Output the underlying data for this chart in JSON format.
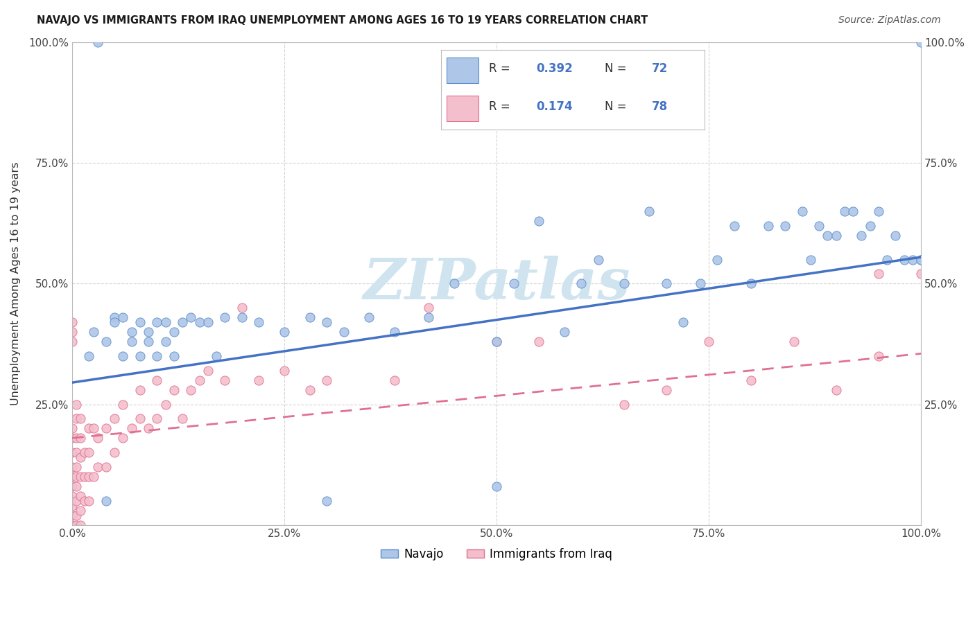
{
  "title": "NAVAJO VS IMMIGRANTS FROM IRAQ UNEMPLOYMENT AMONG AGES 16 TO 19 YEARS CORRELATION CHART",
  "source": "Source: ZipAtlas.com",
  "ylabel": "Unemployment Among Ages 16 to 19 years",
  "xlim": [
    0,
    1.0
  ],
  "ylim": [
    0,
    1.0
  ],
  "xtick_vals": [
    0.0,
    0.25,
    0.5,
    0.75,
    1.0
  ],
  "xtick_labels": [
    "0.0%",
    "25.0%",
    "50.0%",
    "75.0%",
    "100.0%"
  ],
  "ytick_vals": [
    0.0,
    0.25,
    0.5,
    0.75,
    1.0
  ],
  "ytick_labels": [
    "",
    "25.0%",
    "50.0%",
    "75.0%",
    "100.0%"
  ],
  "legend_labels": [
    "Navajo",
    "Immigrants from Iraq"
  ],
  "navajo_R": "0.392",
  "navajo_N": "72",
  "iraq_R": "0.174",
  "iraq_N": "78",
  "navajo_color": "#aec6e8",
  "navajo_edge_color": "#5b8fc9",
  "iraq_color": "#f4bfcc",
  "iraq_edge_color": "#e07090",
  "navajo_line_color": "#4472c4",
  "iraq_line_color": "#e07090",
  "watermark_color": "#d0e4f0",
  "background_color": "#ffffff",
  "grid_color": "#cccccc",
  "navajo_x": [
    0.02,
    0.025,
    0.04,
    0.05,
    0.05,
    0.06,
    0.06,
    0.07,
    0.07,
    0.08,
    0.08,
    0.09,
    0.09,
    0.1,
    0.1,
    0.11,
    0.11,
    0.12,
    0.12,
    0.13,
    0.14,
    0.15,
    0.16,
    0.17,
    0.18,
    0.2,
    0.22,
    0.25,
    0.28,
    0.3,
    0.32,
    0.35,
    0.38,
    0.42,
    0.45,
    0.5,
    0.52,
    0.55,
    0.58,
    0.6,
    0.62,
    0.65,
    0.68,
    0.7,
    0.72,
    0.74,
    0.76,
    0.78,
    0.8,
    0.82,
    0.84,
    0.86,
    0.87,
    0.88,
    0.89,
    0.9,
    0.91,
    0.92,
    0.93,
    0.94,
    0.95,
    0.96,
    0.97,
    0.98,
    0.99,
    1.0,
    1.0,
    1.0,
    0.03,
    0.04,
    0.3,
    0.5
  ],
  "navajo_y": [
    0.35,
    0.4,
    0.38,
    0.43,
    0.42,
    0.35,
    0.43,
    0.4,
    0.38,
    0.42,
    0.35,
    0.4,
    0.38,
    0.42,
    0.35,
    0.38,
    0.42,
    0.35,
    0.4,
    0.42,
    0.43,
    0.42,
    0.42,
    0.35,
    0.43,
    0.43,
    0.42,
    0.4,
    0.43,
    0.42,
    0.4,
    0.43,
    0.4,
    0.43,
    0.5,
    0.38,
    0.5,
    0.63,
    0.4,
    0.5,
    0.55,
    0.5,
    0.65,
    0.5,
    0.42,
    0.5,
    0.55,
    0.62,
    0.5,
    0.62,
    0.62,
    0.65,
    0.55,
    0.62,
    0.6,
    0.6,
    0.65,
    0.65,
    0.6,
    0.62,
    0.65,
    0.55,
    0.6,
    0.55,
    0.55,
    0.55,
    0.55,
    1.0,
    1.0,
    0.05,
    0.05,
    0.08
  ],
  "iraq_x": [
    0.0,
    0.0,
    0.0,
    0.0,
    0.0,
    0.0,
    0.0,
    0.0,
    0.0,
    0.0,
    0.005,
    0.005,
    0.005,
    0.005,
    0.005,
    0.005,
    0.005,
    0.005,
    0.005,
    0.01,
    0.01,
    0.01,
    0.01,
    0.01,
    0.01,
    0.015,
    0.015,
    0.015,
    0.02,
    0.02,
    0.02,
    0.02,
    0.025,
    0.025,
    0.03,
    0.03,
    0.04,
    0.04,
    0.05,
    0.05,
    0.06,
    0.06,
    0.07,
    0.08,
    0.08,
    0.09,
    0.1,
    0.1,
    0.11,
    0.12,
    0.13,
    0.14,
    0.15,
    0.16,
    0.18,
    0.2,
    0.22,
    0.25,
    0.28,
    0.3,
    0.38,
    0.42,
    0.5,
    0.55,
    0.65,
    0.7,
    0.75,
    0.8,
    0.85,
    0.9,
    0.95,
    0.95,
    1.0,
    0.0,
    0.0,
    0.0,
    0.005,
    0.01
  ],
  "iraq_y": [
    0.0,
    0.02,
    0.04,
    0.06,
    0.08,
    0.1,
    0.12,
    0.15,
    0.18,
    0.2,
    0.0,
    0.02,
    0.05,
    0.08,
    0.1,
    0.12,
    0.15,
    0.18,
    0.22,
    0.0,
    0.03,
    0.06,
    0.1,
    0.14,
    0.18,
    0.05,
    0.1,
    0.15,
    0.05,
    0.1,
    0.15,
    0.2,
    0.1,
    0.2,
    0.12,
    0.18,
    0.12,
    0.2,
    0.15,
    0.22,
    0.18,
    0.25,
    0.2,
    0.22,
    0.28,
    0.2,
    0.22,
    0.3,
    0.25,
    0.28,
    0.22,
    0.28,
    0.3,
    0.32,
    0.3,
    0.45,
    0.3,
    0.32,
    0.28,
    0.3,
    0.3,
    0.45,
    0.38,
    0.38,
    0.25,
    0.28,
    0.38,
    0.3,
    0.38,
    0.28,
    0.35,
    0.52,
    0.52,
    0.38,
    0.4,
    0.42,
    0.25,
    0.22
  ],
  "navajo_line_intercept": 0.295,
  "navajo_line_slope": 0.26,
  "iraq_line_intercept": 0.18,
  "iraq_line_slope": 0.175
}
